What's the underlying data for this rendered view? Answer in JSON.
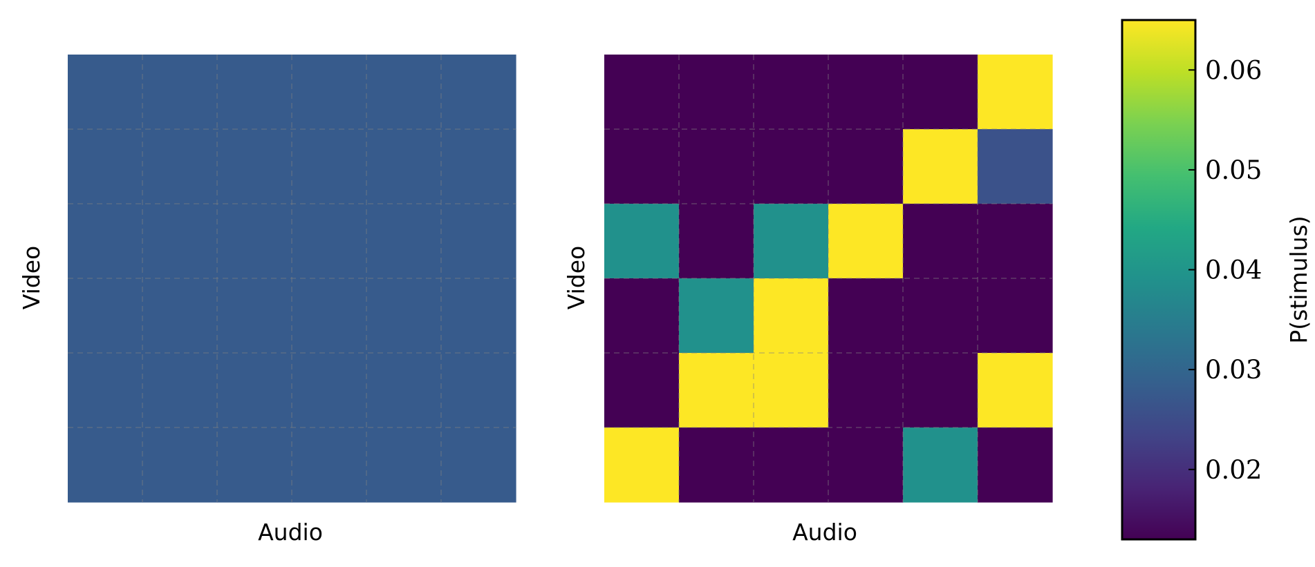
{
  "chart_data": [
    {
      "type": "heatmap",
      "xlabel": "Audio",
      "ylabel": "Video",
      "rows": 6,
      "cols": 6,
      "grid": true,
      "values": [
        [
          0.0278,
          0.0278,
          0.0278,
          0.0278,
          0.0278,
          0.0278
        ],
        [
          0.0278,
          0.0278,
          0.0278,
          0.0278,
          0.0278,
          0.0278
        ],
        [
          0.0278,
          0.0278,
          0.0278,
          0.0278,
          0.0278,
          0.0278
        ],
        [
          0.0278,
          0.0278,
          0.0278,
          0.0278,
          0.0278,
          0.0278
        ],
        [
          0.0278,
          0.0278,
          0.0278,
          0.0278,
          0.0278,
          0.0278
        ],
        [
          0.0278,
          0.0278,
          0.0278,
          0.0278,
          0.0278,
          0.0278
        ]
      ]
    },
    {
      "type": "heatmap",
      "xlabel": "Audio",
      "ylabel": "Video",
      "rows": 6,
      "cols": 6,
      "grid": true,
      "values": [
        [
          0.013,
          0.013,
          0.013,
          0.013,
          0.013,
          0.065
        ],
        [
          0.013,
          0.013,
          0.013,
          0.013,
          0.065,
          0.026
        ],
        [
          0.039,
          0.013,
          0.039,
          0.065,
          0.013,
          0.013
        ],
        [
          0.013,
          0.039,
          0.065,
          0.013,
          0.013,
          0.013
        ],
        [
          0.013,
          0.065,
          0.065,
          0.013,
          0.013,
          0.065
        ],
        [
          0.065,
          0.013,
          0.013,
          0.013,
          0.039,
          0.013
        ]
      ]
    }
  ],
  "colorbar": {
    "label": "P(stimulus)",
    "colormap": "viridis",
    "vmin": 0.013,
    "vmax": 0.065,
    "ticks": [
      0.02,
      0.03,
      0.04,
      0.05,
      0.06
    ],
    "tick_labels": [
      "0.02",
      "0.03",
      "0.04",
      "0.05",
      "0.06"
    ]
  }
}
